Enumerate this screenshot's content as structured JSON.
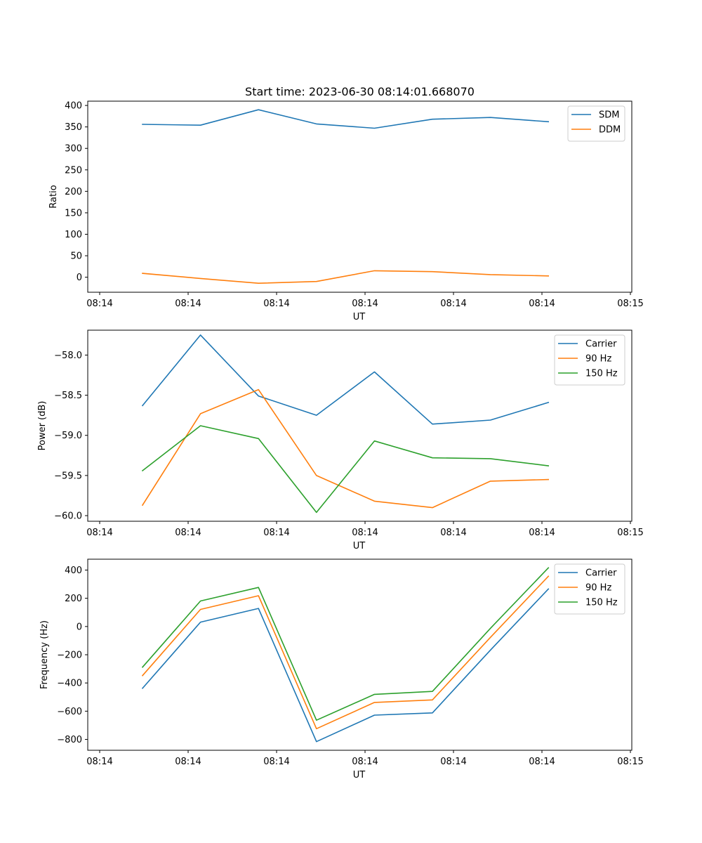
{
  "chart_data": [
    {
      "type": "line",
      "title": "Start time: 2023-06-30 08:14:01.668070",
      "xlabel": "UT",
      "ylabel": "Ratio",
      "x_tick_labels": [
        "08:14",
        "08:14",
        "08:14",
        "08:14",
        "08:14",
        "08:14",
        "08:15"
      ],
      "yticks": [
        0,
        50,
        100,
        150,
        200,
        250,
        300,
        350,
        400
      ],
      "ylim": [
        -35,
        410
      ],
      "legend_position": "top-right",
      "series": [
        {
          "name": "SDM",
          "color": "#1f77b4",
          "values": [
            356,
            354,
            390,
            357,
            347,
            368,
            372,
            362
          ]
        },
        {
          "name": "DDM",
          "color": "#ff7f0e",
          "values": [
            9,
            -3,
            -14,
            -10,
            15,
            13,
            6,
            3
          ]
        }
      ]
    },
    {
      "type": "line",
      "title": "",
      "xlabel": "UT",
      "ylabel": "Power (dB)",
      "x_tick_labels": [
        "08:14",
        "08:14",
        "08:14",
        "08:14",
        "08:14",
        "08:14",
        "08:15"
      ],
      "yticks": [
        -60.0,
        -59.5,
        -59.0,
        -58.5,
        -58.0
      ],
      "ytick_labels": [
        "−60.0",
        "−59.5",
        "−59.0",
        "−58.5",
        "−58.0"
      ],
      "ylim": [
        -60.07,
        -57.69
      ],
      "legend_position": "top-right",
      "series": [
        {
          "name": "Carrier",
          "color": "#1f77b4",
          "values": [
            -58.63,
            -57.75,
            -58.51,
            -58.75,
            -58.21,
            -58.86,
            -58.81,
            -58.59
          ]
        },
        {
          "name": "90 Hz",
          "color": "#ff7f0e",
          "values": [
            -59.87,
            -58.73,
            -58.43,
            -59.5,
            -59.82,
            -59.9,
            -59.57,
            -59.55
          ]
        },
        {
          "name": "150 Hz",
          "color": "#2ca02c",
          "values": [
            -59.44,
            -58.88,
            -59.04,
            -59.96,
            -59.07,
            -59.28,
            -59.29,
            -59.38
          ]
        }
      ]
    },
    {
      "type": "line",
      "title": "",
      "xlabel": "UT",
      "ylabel": "Frequency (Hz)",
      "x_tick_labels": [
        "08:14",
        "08:14",
        "08:14",
        "08:14",
        "08:14",
        "08:14",
        "08:15"
      ],
      "yticks": [
        -800,
        -600,
        -400,
        -200,
        0,
        200,
        400
      ],
      "ytick_labels": [
        "−800",
        "−600",
        "−400",
        "−200",
        "0",
        "200",
        "400"
      ],
      "ylim": [
        -877,
        477
      ],
      "legend_position": "top-right",
      "series": [
        {
          "name": "Carrier",
          "color": "#1f77b4",
          "values": [
            -438,
            31,
            128,
            -816,
            -628,
            -612,
            -167,
            266
          ]
        },
        {
          "name": "90 Hz",
          "color": "#ff7f0e",
          "values": [
            -348,
            121,
            218,
            -724,
            -538,
            -520,
            -77,
            356
          ]
        },
        {
          "name": "150 Hz",
          "color": "#2ca02c",
          "values": [
            -288,
            181,
            277,
            -664,
            -481,
            -460,
            -13,
            416
          ]
        }
      ]
    }
  ]
}
